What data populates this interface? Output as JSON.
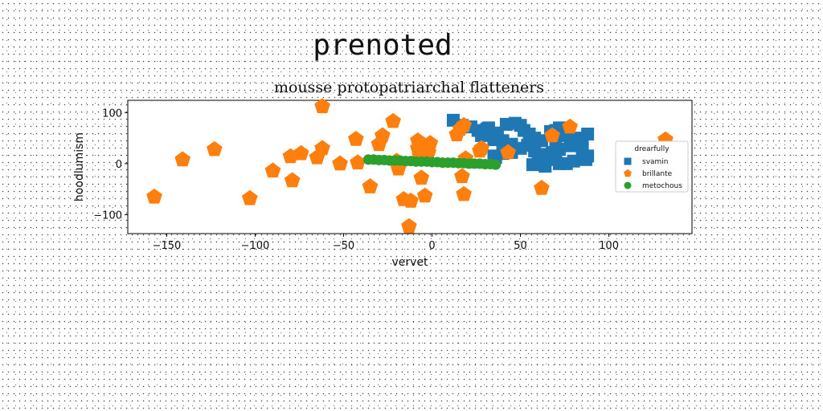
{
  "chart_data": {
    "type": "scatter",
    "suptitle": "prenoted",
    "title": "mousse protopatriarchal flatteners",
    "xlabel": "vervet",
    "ylabel": "hoodlumism",
    "xlim": [
      -172,
      147
    ],
    "ylim": [
      -137,
      124
    ],
    "xticks": [
      -150,
      -100,
      -50,
      0,
      50,
      100
    ],
    "yticks": [
      -100,
      0,
      100
    ],
    "grid": false,
    "legend": {
      "title": "drearfully",
      "position": "right"
    },
    "series": [
      {
        "name": "svamin",
        "marker": "square",
        "color": "#1f77b4",
        "points": [
          [
            12,
            85
          ],
          [
            17,
            75
          ],
          [
            22,
            72
          ],
          [
            26,
            65
          ],
          [
            32,
            70
          ],
          [
            31,
            68
          ],
          [
            37,
            60
          ],
          [
            42,
            77
          ],
          [
            47,
            79
          ],
          [
            50,
            75
          ],
          [
            52,
            65
          ],
          [
            55,
            58
          ],
          [
            58,
            50
          ],
          [
            62,
            45
          ],
          [
            67,
            63
          ],
          [
            70,
            65
          ],
          [
            72,
            70
          ],
          [
            76,
            55
          ],
          [
            81,
            50
          ],
          [
            85,
            42
          ],
          [
            88,
            58
          ],
          [
            28,
            55
          ],
          [
            35,
            47
          ],
          [
            40,
            45
          ],
          [
            45,
            38
          ],
          [
            54,
            36
          ],
          [
            58,
            25
          ],
          [
            62,
            18
          ],
          [
            68,
            22
          ],
          [
            72,
            28
          ],
          [
            78,
            35
          ],
          [
            85,
            28
          ],
          [
            88,
            15
          ],
          [
            35,
            15
          ],
          [
            40,
            20
          ],
          [
            45,
            22
          ],
          [
            60,
            5
          ],
          [
            65,
            8
          ],
          [
            70,
            12
          ],
          [
            76,
            0
          ],
          [
            80,
            5
          ],
          [
            87,
            8
          ],
          [
            57,
            -2
          ],
          [
            64,
            -5
          ],
          [
            72,
            0
          ],
          [
            36,
            12
          ],
          [
            50,
            30
          ],
          [
            70,
            42
          ]
        ]
      },
      {
        "name": "brillante",
        "marker": "pentagon",
        "color": "#ff7f0e",
        "points": [
          [
            -157,
            -65
          ],
          [
            -141,
            8
          ],
          [
            -123,
            28
          ],
          [
            -103,
            -68
          ],
          [
            -90,
            -14
          ],
          [
            -80,
            14
          ],
          [
            -79,
            -33
          ],
          [
            -74,
            20
          ],
          [
            -65,
            12
          ],
          [
            -62,
            30
          ],
          [
            -62,
            112
          ],
          [
            -52,
            0
          ],
          [
            -43,
            48
          ],
          [
            -42,
            2
          ],
          [
            -35,
            -45
          ],
          [
            -30,
            38
          ],
          [
            -28,
            55
          ],
          [
            -22,
            83
          ],
          [
            -20,
            5
          ],
          [
            -19,
            -10
          ],
          [
            -16,
            -70
          ],
          [
            -13,
            -123
          ],
          [
            -12,
            -73
          ],
          [
            -8,
            45
          ],
          [
            -8,
            30
          ],
          [
            -7,
            15
          ],
          [
            -6,
            -28
          ],
          [
            -4,
            32
          ],
          [
            -4,
            -63
          ],
          [
            -2,
            22
          ],
          [
            -1,
            40
          ],
          [
            14,
            57
          ],
          [
            16,
            68
          ],
          [
            18,
            -60
          ],
          [
            18,
            75
          ],
          [
            17,
            -25
          ],
          [
            19,
            10
          ],
          [
            27,
            25
          ],
          [
            28,
            30
          ],
          [
            43,
            22
          ],
          [
            62,
            -48
          ],
          [
            68,
            55
          ],
          [
            78,
            72
          ],
          [
            132,
            47
          ]
        ]
      },
      {
        "name": "metochous",
        "marker": "circle",
        "color": "#2ca02c",
        "points": [
          [
            -36,
            8
          ],
          [
            -33,
            8
          ],
          [
            -30,
            7
          ],
          [
            -27,
            7
          ],
          [
            -24,
            6
          ],
          [
            -21,
            6
          ],
          [
            -18,
            6
          ],
          [
            -15,
            5
          ],
          [
            -12,
            5
          ],
          [
            -9,
            4
          ],
          [
            -6,
            4
          ],
          [
            -3,
            4
          ],
          [
            0,
            3
          ],
          [
            3,
            3
          ],
          [
            6,
            2
          ],
          [
            9,
            2
          ],
          [
            12,
            2
          ],
          [
            15,
            1
          ],
          [
            18,
            1
          ],
          [
            21,
            0
          ],
          [
            24,
            0
          ],
          [
            27,
            0
          ],
          [
            30,
            -1
          ],
          [
            33,
            -1
          ],
          [
            36,
            -2
          ]
        ]
      }
    ]
  }
}
